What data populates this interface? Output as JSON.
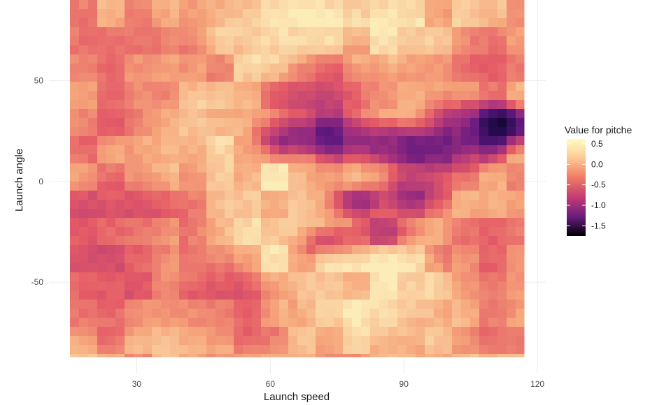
{
  "chart_data": {
    "type": "heatmap",
    "title": "",
    "xlabel": "Launch speed",
    "ylabel": "Launch angle",
    "xlim": [
      15,
      117
    ],
    "ylim": [
      -87,
      90
    ],
    "x_ticks": [
      30,
      60,
      90,
      120
    ],
    "y_ticks": [
      -50,
      0,
      50
    ],
    "grid": true,
    "legend": {
      "title": "Value for pitche",
      "placement": "right",
      "ticks": [
        0.5,
        0.0,
        -0.5,
        -1.0,
        -1.5
      ],
      "range": [
        -1.75,
        0.62
      ]
    },
    "colors": {
      "low": "#000004",
      "mid_low": "#3b0f70",
      "mid": "#8c2981",
      "mid_high": "#de4968",
      "high_mid": "#f4a77a",
      "high": "#fcfdbf"
    },
    "background_value": 0.25,
    "features": [
      {
        "x": 112,
        "y": 28,
        "value": -2.0,
        "sx": 5,
        "sy": 7
      },
      {
        "x": 105,
        "y": 25,
        "value": -1.3,
        "sx": 7,
        "sy": 10
      },
      {
        "x": 95,
        "y": 15,
        "value": -1.1,
        "sx": 8,
        "sy": 8
      },
      {
        "x": 85,
        "y": 20,
        "value": -1.0,
        "sx": 8,
        "sy": 7
      },
      {
        "x": 73,
        "y": 23,
        "value": -1.2,
        "sx": 7,
        "sy": 8
      },
      {
        "x": 64,
        "y": 22,
        "value": -1.0,
        "sx": 5,
        "sy": 7
      },
      {
        "x": 80,
        "y": -10,
        "value": -0.9,
        "sx": 4,
        "sy": 5
      },
      {
        "x": 92,
        "y": -5,
        "value": -0.8,
        "sx": 6,
        "sy": 8
      },
      {
        "x": 85,
        "y": -25,
        "value": -0.6,
        "sx": 6,
        "sy": 6
      },
      {
        "x": 73,
        "y": -30,
        "value": -0.5,
        "sx": 5,
        "sy": 5
      },
      {
        "x": 70,
        "y": 40,
        "value": -0.4,
        "sx": 8,
        "sy": 8
      },
      {
        "x": 75,
        "y": 55,
        "value": -0.2,
        "sx": 7,
        "sy": 8
      },
      {
        "x": 25,
        "y": -20,
        "value": -0.35,
        "sx": 12,
        "sy": 18
      },
      {
        "x": 22,
        "y": -55,
        "value": -0.25,
        "sx": 10,
        "sy": 18
      },
      {
        "x": 50,
        "y": -62,
        "value": -0.2,
        "sx": 10,
        "sy": 14
      },
      {
        "x": 20,
        "y": 30,
        "value": -0.1,
        "sx": 8,
        "sy": 15
      },
      {
        "x": 30,
        "y": 65,
        "value": 0.0,
        "sx": 12,
        "sy": 15
      },
      {
        "x": 60,
        "y": -15,
        "value": 0.55,
        "sx": 8,
        "sy": 25
      },
      {
        "x": 85,
        "y": -55,
        "value": 0.6,
        "sx": 14,
        "sy": 18
      },
      {
        "x": 70,
        "y": 75,
        "value": 0.6,
        "sx": 22,
        "sy": 12
      },
      {
        "x": 45,
        "y": 25,
        "value": 0.45,
        "sx": 8,
        "sy": 10
      },
      {
        "x": 108,
        "y": -45,
        "value": -0.1,
        "sx": 8,
        "sy": 25
      },
      {
        "x": 110,
        "y": 60,
        "value": -0.05,
        "sx": 6,
        "sy": 15
      }
    ]
  }
}
